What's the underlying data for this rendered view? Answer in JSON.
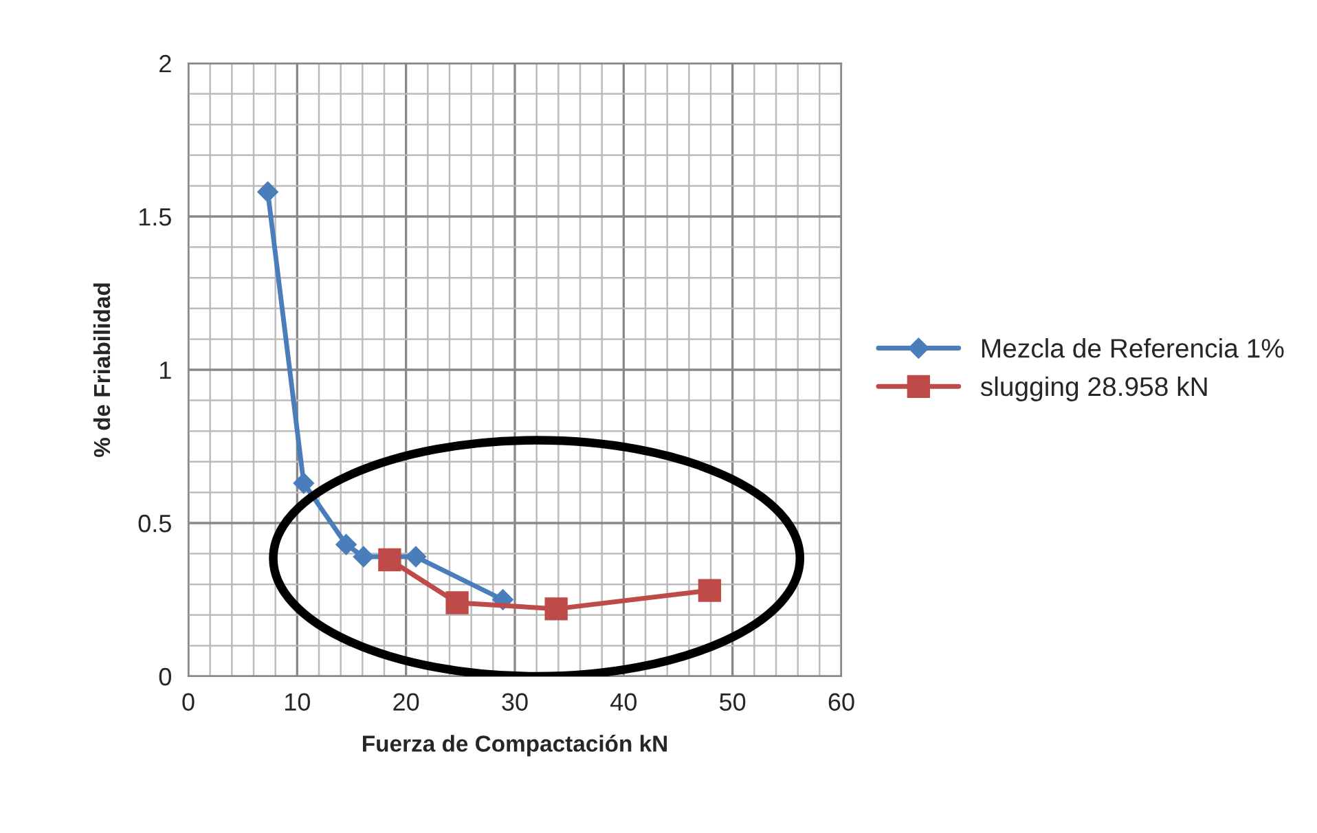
{
  "chart_data": {
    "type": "line",
    "xlabel": "Fuerza de Compactación kN",
    "ylabel": "% de Friabilidad",
    "xlim": [
      0,
      60
    ],
    "xticks": [
      0,
      10,
      20,
      30,
      40,
      50,
      60
    ],
    "ylim": [
      0,
      2
    ],
    "yticks": [
      0,
      0.5,
      1,
      1.5,
      2
    ],
    "grid": true,
    "legend": "right",
    "line_style": "solid",
    "series": [
      {
        "name": "Mezcla de Referencia 1%",
        "color": "#4a7ebb",
        "marker": "diamond",
        "x": [
          7.3,
          10.6,
          14.5,
          16.1,
          20.9,
          28.9
        ],
        "values": [
          1.58,
          0.63,
          0.43,
          0.39,
          0.39,
          0.25
        ]
      },
      {
        "name": "slugging 28.958 kN",
        "color": "#be4b48",
        "marker": "square",
        "x": [
          18.5,
          24.7,
          33.8,
          47.9
        ],
        "values": [
          0.38,
          0.24,
          0.22,
          0.28
        ]
      }
    ]
  }
}
